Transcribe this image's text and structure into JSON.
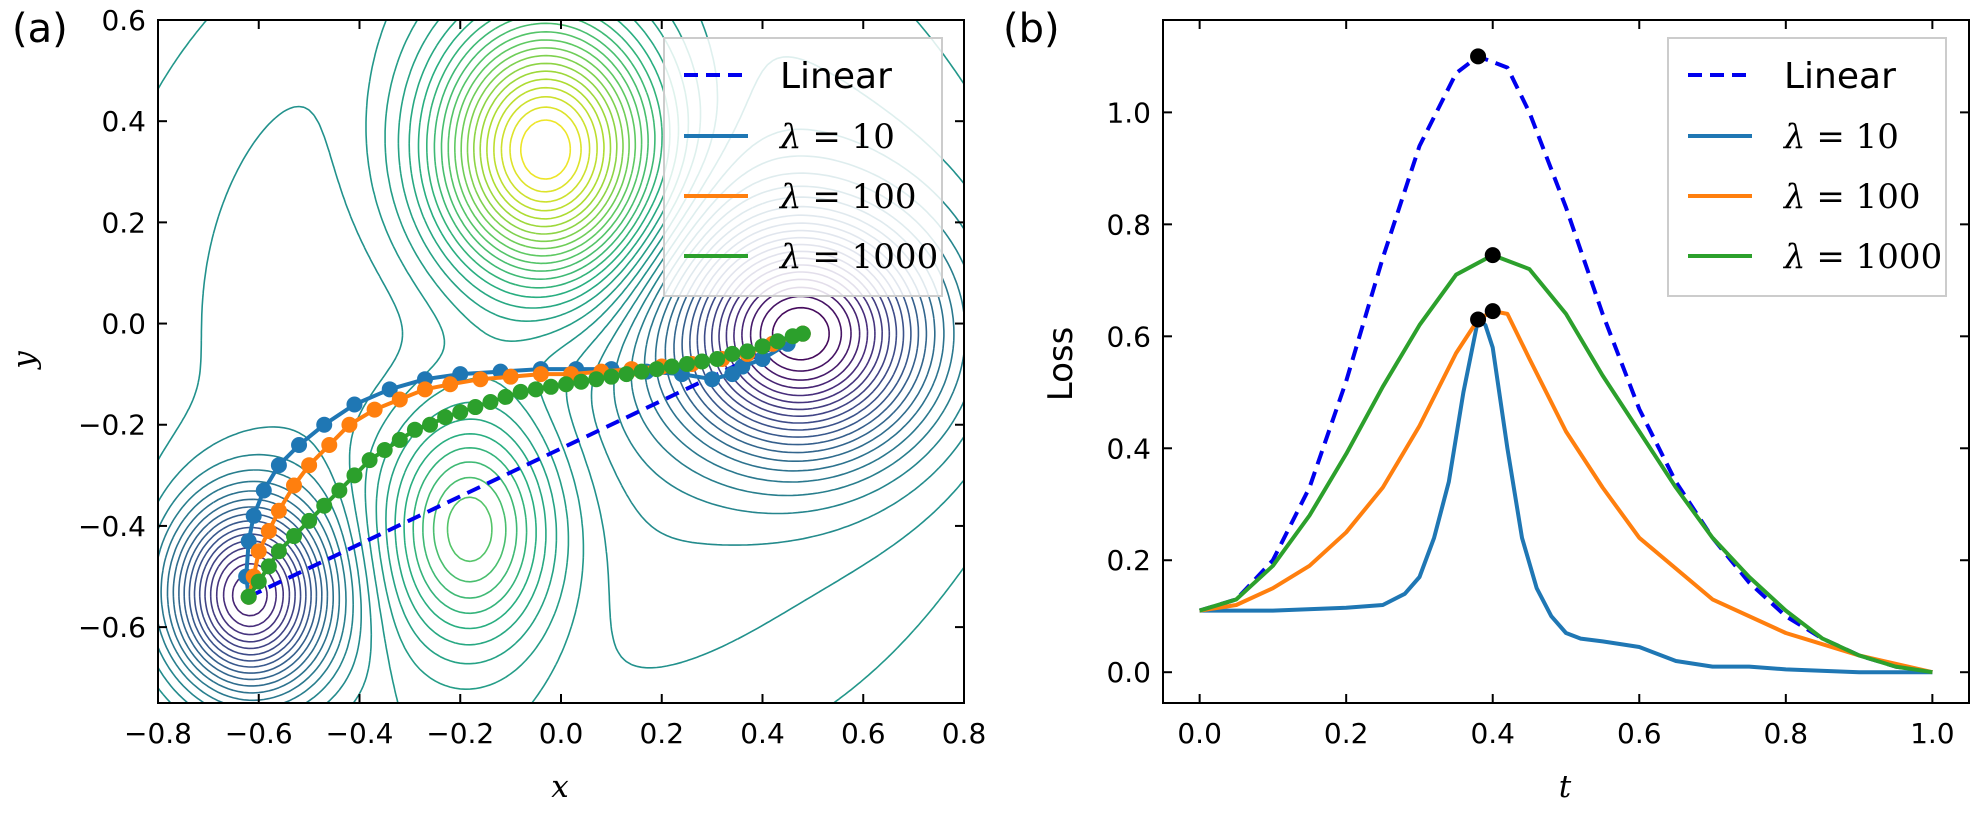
{
  "chart_data": [
    {
      "panel": "(a)",
      "type": "line",
      "xlabel": "x",
      "ylabel": "y",
      "xlim": [
        -0.8,
        0.8
      ],
      "ylim": [
        -0.75,
        0.6
      ],
      "xticks": [
        -0.8,
        -0.6,
        -0.4,
        -0.2,
        0.0,
        0.2,
        0.4,
        0.6,
        0.8
      ],
      "xtick_labels": [
        "−0.8",
        "−0.6",
        "−0.4",
        "−0.2",
        "0.0",
        "0.2",
        "0.4",
        "0.6",
        "0.8"
      ],
      "yticks": [
        -0.6,
        -0.4,
        -0.2,
        0.0,
        0.2,
        0.4,
        0.6
      ],
      "ytick_labels": [
        "−0.6",
        "−0.4",
        "−0.2",
        "0.0",
        "0.2",
        "0.4",
        "0.6"
      ],
      "contour_minima": [
        {
          "x": -0.62,
          "y": -0.54,
          "kind": "minimum"
        },
        {
          "x": 0.48,
          "y": -0.02,
          "kind": "minimum"
        },
        {
          "x": -0.18,
          "y": -0.4,
          "kind": "maximum"
        },
        {
          "x": -0.03,
          "y": 0.34,
          "kind": "maximum"
        }
      ],
      "series": [
        {
          "name": "Linear",
          "lambda": "",
          "color": "#0000ee",
          "dash": true,
          "x": [
            -0.62,
            0.48
          ],
          "y": [
            -0.54,
            -0.02
          ],
          "markers": false
        },
        {
          "name": "λ = 10",
          "lambda": "10",
          "color": "#1f77b4",
          "dash": false,
          "x": [
            -0.62,
            -0.625,
            -0.62,
            -0.61,
            -0.59,
            -0.56,
            -0.52,
            -0.47,
            -0.41,
            -0.34,
            -0.27,
            -0.2,
            -0.12,
            -0.04,
            0.03,
            0.1,
            0.17,
            0.24,
            0.3,
            0.34,
            0.36,
            0.4,
            0.45,
            0.48
          ],
          "y": [
            -0.54,
            -0.5,
            -0.43,
            -0.38,
            -0.33,
            -0.28,
            -0.24,
            -0.2,
            -0.16,
            -0.13,
            -0.11,
            -0.1,
            -0.095,
            -0.09,
            -0.09,
            -0.09,
            -0.095,
            -0.1,
            -0.11,
            -0.1,
            -0.085,
            -0.07,
            -0.04,
            -0.02
          ],
          "markers": true
        },
        {
          "name": "λ = 100",
          "lambda": "100",
          "color": "#ff7f0e",
          "dash": false,
          "x": [
            -0.62,
            -0.61,
            -0.6,
            -0.58,
            -0.56,
            -0.53,
            -0.5,
            -0.46,
            -0.42,
            -0.37,
            -0.32,
            -0.27,
            -0.22,
            -0.16,
            -0.1,
            -0.04,
            0.02,
            0.08,
            0.14,
            0.2,
            0.26,
            0.32,
            0.37,
            0.42,
            0.48
          ],
          "y": [
            -0.54,
            -0.5,
            -0.45,
            -0.41,
            -0.37,
            -0.32,
            -0.28,
            -0.24,
            -0.2,
            -0.17,
            -0.15,
            -0.13,
            -0.12,
            -0.11,
            -0.105,
            -0.1,
            -0.1,
            -0.095,
            -0.09,
            -0.085,
            -0.08,
            -0.07,
            -0.06,
            -0.04,
            -0.02
          ],
          "markers": true
        },
        {
          "name": "λ = 1000",
          "lambda": "1000",
          "color": "#2ca02c",
          "dash": false,
          "x": [
            -0.62,
            -0.6,
            -0.58,
            -0.56,
            -0.53,
            -0.5,
            -0.47,
            -0.44,
            -0.41,
            -0.38,
            -0.35,
            -0.32,
            -0.29,
            -0.26,
            -0.23,
            -0.2,
            -0.17,
            -0.14,
            -0.11,
            -0.08,
            -0.05,
            -0.02,
            0.01,
            0.04,
            0.07,
            0.1,
            0.13,
            0.16,
            0.19,
            0.22,
            0.25,
            0.28,
            0.31,
            0.34,
            0.37,
            0.4,
            0.43,
            0.46,
            0.48
          ],
          "y": [
            -0.54,
            -0.51,
            -0.48,
            -0.45,
            -0.42,
            -0.39,
            -0.36,
            -0.33,
            -0.3,
            -0.27,
            -0.25,
            -0.23,
            -0.21,
            -0.2,
            -0.185,
            -0.175,
            -0.165,
            -0.155,
            -0.145,
            -0.135,
            -0.13,
            -0.125,
            -0.12,
            -0.115,
            -0.11,
            -0.105,
            -0.1,
            -0.095,
            -0.09,
            -0.085,
            -0.08,
            -0.075,
            -0.07,
            -0.06,
            -0.055,
            -0.045,
            -0.035,
            -0.025,
            -0.02
          ],
          "markers": true
        }
      ],
      "legend": {
        "position": "top-right",
        "entries": [
          "Linear",
          "λ = 10",
          "λ = 100",
          "λ = 1000"
        ]
      }
    },
    {
      "panel": "(b)",
      "type": "line",
      "xlabel": "t",
      "ylabel": "Loss",
      "xlim": [
        -0.05,
        1.05
      ],
      "ylim": [
        -0.055,
        1.165
      ],
      "xticks": [
        0.0,
        0.2,
        0.4,
        0.6,
        0.8,
        1.0
      ],
      "xtick_labels": [
        "0.0",
        "0.2",
        "0.4",
        "0.6",
        "0.8",
        "1.0"
      ],
      "yticks": [
        0.0,
        0.2,
        0.4,
        0.6,
        0.8,
        1.0
      ],
      "ytick_labels": [
        "0.0",
        "0.2",
        "0.4",
        "0.6",
        "0.8",
        "1.0"
      ],
      "series": [
        {
          "name": "Linear",
          "lambda": "",
          "color": "#0000ee",
          "dash": true,
          "x": [
            0.0,
            0.05,
            0.1,
            0.15,
            0.2,
            0.25,
            0.3,
            0.35,
            0.38,
            0.42,
            0.45,
            0.5,
            0.55,
            0.6,
            0.65,
            0.7,
            0.75,
            0.8,
            0.85,
            0.9,
            0.95,
            1.0
          ],
          "y": [
            0.11,
            0.13,
            0.2,
            0.33,
            0.52,
            0.74,
            0.94,
            1.07,
            1.1,
            1.08,
            1.0,
            0.83,
            0.64,
            0.47,
            0.34,
            0.24,
            0.16,
            0.1,
            0.06,
            0.03,
            0.01,
            0.0
          ]
        },
        {
          "name": "λ = 10",
          "lambda": "10",
          "color": "#1f77b4",
          "dash": false,
          "x": [
            0.0,
            0.1,
            0.2,
            0.25,
            0.28,
            0.3,
            0.32,
            0.34,
            0.36,
            0.38,
            0.39,
            0.4,
            0.42,
            0.44,
            0.46,
            0.48,
            0.5,
            0.52,
            0.55,
            0.6,
            0.65,
            0.7,
            0.75,
            0.8,
            0.9,
            1.0
          ],
          "y": [
            0.11,
            0.11,
            0.115,
            0.12,
            0.14,
            0.17,
            0.24,
            0.34,
            0.5,
            0.63,
            0.62,
            0.58,
            0.4,
            0.24,
            0.15,
            0.1,
            0.07,
            0.06,
            0.055,
            0.045,
            0.02,
            0.01,
            0.01,
            0.005,
            0.0,
            0.0
          ]
        },
        {
          "name": "λ = 100",
          "lambda": "100",
          "color": "#ff7f0e",
          "dash": false,
          "x": [
            0.0,
            0.05,
            0.1,
            0.15,
            0.2,
            0.25,
            0.3,
            0.35,
            0.38,
            0.4,
            0.42,
            0.45,
            0.5,
            0.55,
            0.6,
            0.7,
            0.8,
            0.9,
            1.0
          ],
          "y": [
            0.11,
            0.12,
            0.15,
            0.19,
            0.25,
            0.33,
            0.44,
            0.57,
            0.63,
            0.645,
            0.64,
            0.56,
            0.43,
            0.33,
            0.24,
            0.13,
            0.07,
            0.03,
            0.0
          ]
        },
        {
          "name": "λ = 1000",
          "lambda": "1000",
          "color": "#2ca02c",
          "dash": false,
          "x": [
            0.0,
            0.05,
            0.1,
            0.15,
            0.2,
            0.25,
            0.3,
            0.35,
            0.4,
            0.45,
            0.5,
            0.55,
            0.6,
            0.65,
            0.7,
            0.75,
            0.8,
            0.85,
            0.9,
            0.95,
            1.0
          ],
          "y": [
            0.11,
            0.13,
            0.19,
            0.28,
            0.39,
            0.51,
            0.62,
            0.71,
            0.745,
            0.72,
            0.64,
            0.53,
            0.43,
            0.33,
            0.24,
            0.17,
            0.11,
            0.06,
            0.03,
            0.01,
            0.0
          ]
        }
      ],
      "peaks": [
        {
          "series": "Linear",
          "x": 0.38,
          "y": 1.1
        },
        {
          "series": "λ = 1000",
          "x": 0.4,
          "y": 0.745
        },
        {
          "series": "λ = 100",
          "x": 0.4,
          "y": 0.645
        },
        {
          "series": "λ = 10",
          "x": 0.38,
          "y": 0.63
        }
      ],
      "legend": {
        "position": "top-right",
        "entries": [
          "Linear",
          "λ = 10",
          "λ = 100",
          "λ = 1000"
        ]
      }
    }
  ],
  "panels": {
    "a_label": "(a)",
    "b_label": "(b)"
  },
  "legend_labels": {
    "linear": "Linear",
    "lam_symbol": "λ",
    "eq": " = ",
    "l10": "10",
    "l100": "100",
    "l1000": "1000"
  },
  "colors": {
    "linear": "#0000ee",
    "l10": "#1f77b4",
    "l100": "#ff7f0e",
    "l1000": "#2ca02c",
    "peak": "#000000"
  }
}
